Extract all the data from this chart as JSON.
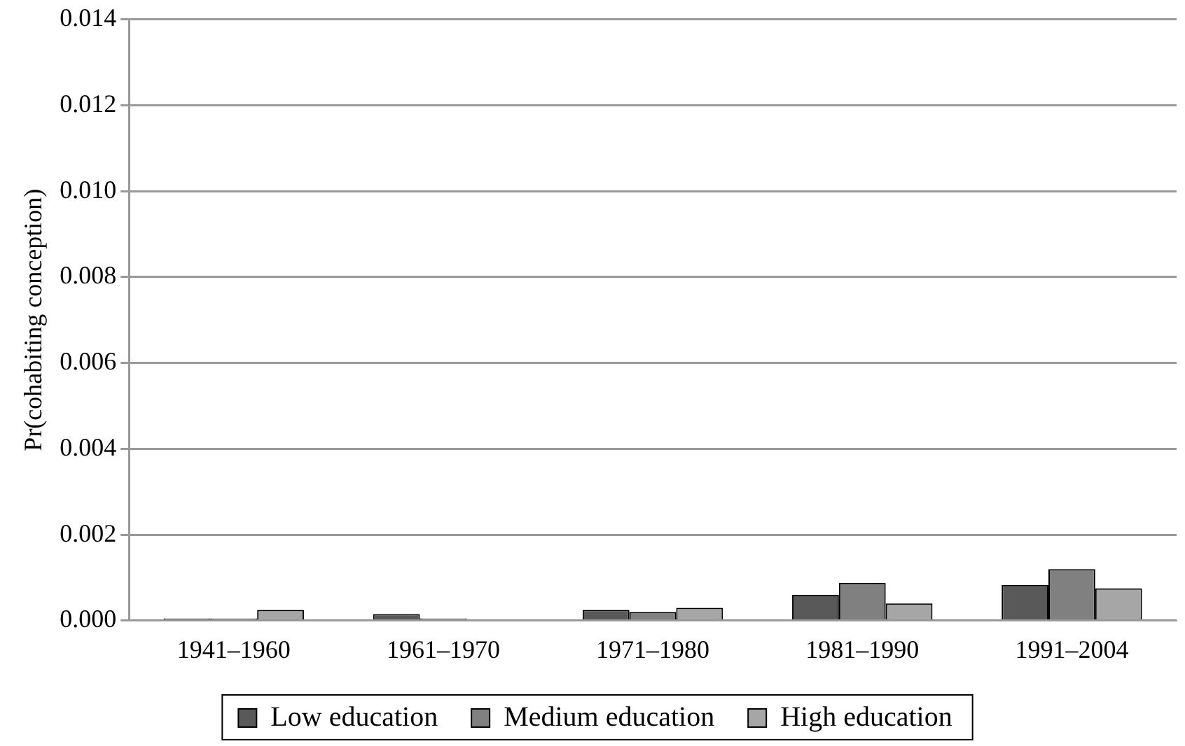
{
  "chart_data": {
    "type": "bar",
    "ylabel": "Pr(cohabiting conception)",
    "categories": [
      "1941–1960",
      "1961–1970",
      "1971–1980",
      "1981–1990",
      "1991–2004"
    ],
    "series": [
      {
        "name": "Low education",
        "color": "#595959",
        "values": [
          5e-05,
          0.00015,
          0.00025,
          0.0006,
          0.00083
        ]
      },
      {
        "name": "Medium education",
        "color": "#808080",
        "values": [
          5e-05,
          5e-05,
          0.0002,
          0.00088,
          0.0012
        ]
      },
      {
        "name": "High education",
        "color": "#a6a6a6",
        "values": [
          0.00025,
          null,
          0.0003,
          0.0004,
          0.00075
        ]
      }
    ],
    "ylim": [
      0,
      0.014
    ],
    "yticks": [
      {
        "value": 0,
        "label": "0.000"
      },
      {
        "value": 0.002,
        "label": "0.002"
      },
      {
        "value": 0.004,
        "label": "0.004"
      },
      {
        "value": 0.006,
        "label": "0.006"
      },
      {
        "value": 0.008,
        "label": "0.008"
      },
      {
        "value": 0.01,
        "label": "0.010"
      },
      {
        "value": 0.012,
        "label": "0.012"
      },
      {
        "value": 0.014,
        "label": "0.014"
      }
    ],
    "grid": "y",
    "legend": "bottom"
  }
}
